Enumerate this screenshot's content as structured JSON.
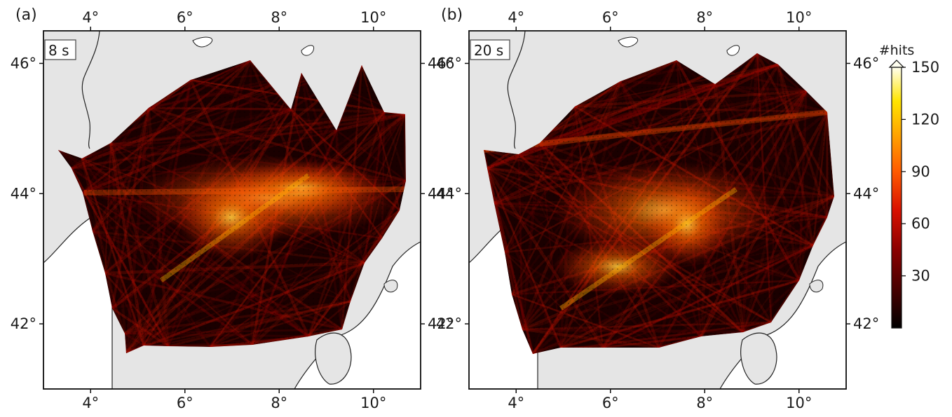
{
  "figure": {
    "colorbar": {
      "title": "#hits",
      "ticks": [
        30,
        60,
        90,
        120,
        150
      ],
      "range": [
        0,
        150
      ],
      "colors": [
        "#000000",
        "#3a0000",
        "#8b0000",
        "#d81000",
        "#ff5a00",
        "#ffa300",
        "#ffe400",
        "#fffff0"
      ]
    },
    "map_colors": {
      "land": "#e5e5e5",
      "sea": "#ffffff",
      "coast": "#111111"
    },
    "axes": {
      "lon_ticks": [
        4,
        6,
        8,
        10
      ],
      "lat_ticks": [
        42,
        44,
        46
      ],
      "lon_range": [
        3.0,
        11.0
      ],
      "lat_range": [
        41.0,
        46.5
      ],
      "lon_labels": [
        "4°",
        "6°",
        "8°",
        "10°"
      ],
      "lat_labels": [
        "42°",
        "44°",
        "46°"
      ]
    },
    "panels": [
      {
        "label": "(a)",
        "period": "8 s"
      },
      {
        "label": "(b)",
        "period": "20 s"
      }
    ]
  }
}
